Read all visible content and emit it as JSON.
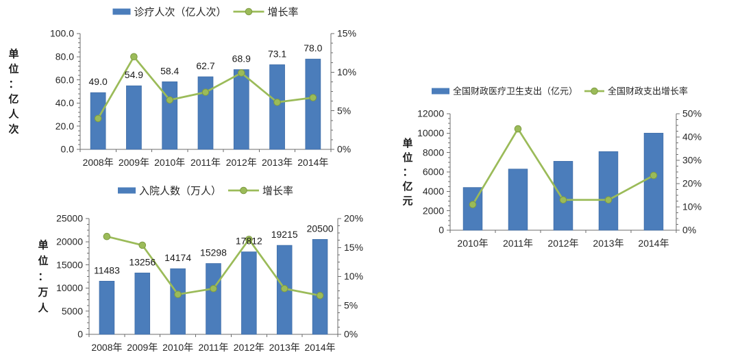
{
  "page": {
    "background": "#ffffff"
  },
  "colors": {
    "bar_fill": "#4b7dbb",
    "bar_edge": "#3e6ca6",
    "line": "#9bbb59",
    "marker_fill": "#9bbb59",
    "marker_edge": "#7e9b42",
    "axis": "#6b6b6b",
    "tick_text": "#262626",
    "data_label_text": "#1a1a1a"
  },
  "chart_data": [
    {
      "name": "diagnosis-visits",
      "type": "bar+line",
      "legend_position": "top",
      "grid": false,
      "legend": [
        {
          "series_type": "bar",
          "label": "诊疗人次（亿人次）"
        },
        {
          "series_type": "line",
          "label": "增长率"
        }
      ],
      "unit_axis_title": "单位：亿人次",
      "categories": [
        "2008年",
        "2009年",
        "2010年",
        "2011年",
        "2012年",
        "2013年",
        "2014年"
      ],
      "series": [
        {
          "name": "诊疗人次（亿人次）",
          "type": "bar",
          "axis": "left",
          "values": [
            49.0,
            54.9,
            58.4,
            62.7,
            68.9,
            73.1,
            78.0
          ],
          "data_labels": [
            "49.0",
            "54.9",
            "58.4",
            "62.7",
            "68.9",
            "73.1",
            "78.0"
          ]
        },
        {
          "name": "增长率",
          "type": "line",
          "axis": "right",
          "values": [
            4.0,
            12.0,
            6.4,
            7.4,
            9.9,
            6.1,
            6.7
          ]
        }
      ],
      "left_axis": {
        "min": 0,
        "max": 100,
        "tick_labels": [
          "0.0",
          "20.0",
          "40.0",
          "60.0",
          "80.0",
          "100.0"
        ]
      },
      "right_axis": {
        "min": 0,
        "max": 15,
        "tick_labels": [
          "0%",
          "5%",
          "10%",
          "15%"
        ]
      }
    },
    {
      "name": "hospital-admissions",
      "type": "bar+line",
      "legend_position": "top",
      "grid": false,
      "legend": [
        {
          "series_type": "bar",
          "label": "入院人数（万人）"
        },
        {
          "series_type": "line",
          "label": "增长率"
        }
      ],
      "unit_axis_title": "单位：万人",
      "categories": [
        "2008年",
        "2009年",
        "2010年",
        "2011年",
        "2012年",
        "2013年",
        "2014年"
      ],
      "series": [
        {
          "name": "入院人数（万人）",
          "type": "bar",
          "axis": "left",
          "values": [
            11483,
            13256,
            14174,
            15298,
            17812,
            19215,
            20500
          ],
          "data_labels": [
            "11483",
            "13256",
            "14174",
            "15298",
            "17812",
            "19215",
            "20500"
          ]
        },
        {
          "name": "增长率",
          "type": "line",
          "axis": "right",
          "values": [
            16.9,
            15.4,
            6.9,
            7.9,
            16.4,
            7.9,
            6.7
          ]
        }
      ],
      "left_axis": {
        "min": 0,
        "max": 25000,
        "tick_labels": [
          "0",
          "5000",
          "10000",
          "15000",
          "20000",
          "25000"
        ]
      },
      "right_axis": {
        "min": 0,
        "max": 20,
        "tick_labels": [
          "0%",
          "5%",
          "10%",
          "15%",
          "20%"
        ]
      }
    },
    {
      "name": "fiscal-health-expenditure",
      "type": "bar+line",
      "legend_position": "top",
      "grid": false,
      "legend": [
        {
          "series_type": "bar",
          "label": "全国财政医疗卫生支出（亿元）"
        },
        {
          "series_type": "line",
          "label": "全国财政支出增长率"
        }
      ],
      "unit_axis_title": "单位：亿元",
      "categories": [
        "2010年",
        "2011年",
        "2012年",
        "2013年",
        "2014年"
      ],
      "series": [
        {
          "name": "全国财政医疗卫生支出（亿元）",
          "type": "bar",
          "axis": "left",
          "values": [
            4400,
            6300,
            7100,
            8100,
            10000
          ],
          "data_labels": []
        },
        {
          "name": "全国财政支出增长率",
          "type": "line",
          "axis": "right",
          "values": [
            11.0,
            43.5,
            13.0,
            13.0,
            23.5
          ]
        }
      ],
      "left_axis": {
        "min": 0,
        "max": 12000,
        "tick_labels": [
          "0",
          "2000",
          "4000",
          "6000",
          "8000",
          "10000",
          "12000"
        ]
      },
      "right_axis": {
        "min": 0,
        "max": 50,
        "tick_labels": [
          "0%",
          "10%",
          "20%",
          "30%",
          "40%",
          "50%"
        ]
      }
    }
  ]
}
